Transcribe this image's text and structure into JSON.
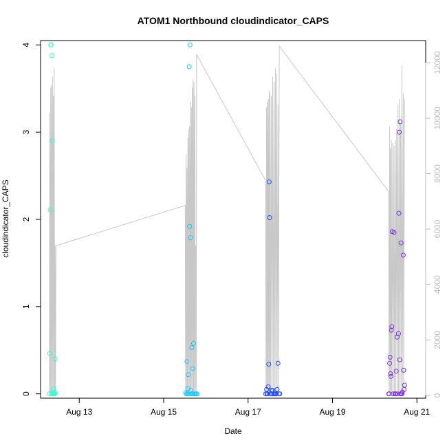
{
  "chart_data": {
    "type": "scatter",
    "title": "ATOM1 Northbound cloudindicator_CAPS",
    "xlabel": "Date",
    "ylabel": "cloudindicator_CAPS",
    "x_ticks": [
      "Aug 13",
      "Aug 15",
      "Aug 17",
      "Aug 19",
      "Aug 21"
    ],
    "y_ticks": [
      "0",
      "1",
      "2",
      "3",
      "4"
    ],
    "y2_ticks": [
      "0",
      "2000",
      "4000",
      "6000",
      "8000",
      "10000",
      "12000"
    ],
    "xlim": [
      "2021-08-12 02:00",
      "2021-08-21 05:00"
    ],
    "ylim": [
      -0.05,
      4.05
    ],
    "y2lim": [
      -100,
      12800
    ],
    "grid": false,
    "legend": "none",
    "point_colors": [
      "#2fffcc",
      "#19c8ff",
      "#1f4aff",
      "#7a2ee8"
    ],
    "line_color": "#c8c8c8",
    "series": [
      {
        "color": "#2fffcc",
        "values": [
          [
            "2021-08-12 07:45",
            4.0
          ],
          [
            "2021-08-12 08:00",
            4.0
          ],
          [
            "2021-08-12 08:30",
            3.88
          ],
          [
            "2021-08-12 08:45",
            2.9
          ],
          [
            "2021-08-12 07:30",
            2.11
          ],
          [
            "2021-08-12 07:15",
            0.46
          ],
          [
            "2021-08-12 10:15",
            0.4
          ],
          [
            "2021-08-12 09:30",
            0.06
          ],
          [
            "2021-08-12 09:00",
            0.02
          ],
          [
            "2021-08-12 07:00",
            0.0
          ],
          [
            "2021-08-12 08:15",
            0.0
          ],
          [
            "2021-08-12 09:15",
            0.0
          ],
          [
            "2021-08-12 09:45",
            0.0
          ],
          [
            "2021-08-12 10:00",
            0.0
          ],
          [
            "2021-08-12 10:30",
            0.01
          ]
        ]
      },
      {
        "color": "#19c8ff",
        "values": [
          [
            "2021-08-15 15:00",
            4.0
          ],
          [
            "2021-08-15 14:30",
            3.75
          ],
          [
            "2021-08-15 14:45",
            1.92
          ],
          [
            "2021-08-15 15:15",
            1.79
          ],
          [
            "2021-08-15 17:00",
            0.58
          ],
          [
            "2021-08-15 16:00",
            0.53
          ],
          [
            "2021-08-15 13:15",
            0.37
          ],
          [
            "2021-08-15 16:30",
            0.29
          ],
          [
            "2021-08-15 14:00",
            0.22
          ],
          [
            "2021-08-15 13:45",
            0.06
          ],
          [
            "2021-08-15 15:30",
            0.04
          ],
          [
            "2021-08-15 12:30",
            0.01
          ],
          [
            "2021-08-15 13:00",
            0.0
          ],
          [
            "2021-08-15 13:30",
            0.0
          ],
          [
            "2021-08-15 14:15",
            0.0
          ],
          [
            "2021-08-15 15:45",
            0.0
          ],
          [
            "2021-08-15 16:15",
            0.0
          ],
          [
            "2021-08-15 16:45",
            0.0
          ],
          [
            "2021-08-15 17:30",
            0.0
          ],
          [
            "2021-08-15 18:00",
            0.0
          ],
          [
            "2021-08-15 18:30",
            0.0
          ],
          [
            "2021-08-15 19:00",
            0.0
          ]
        ]
      },
      {
        "color": "#1f4aff",
        "values": [
          [
            "2021-08-17 12:00",
            2.43
          ],
          [
            "2021-08-17 12:15",
            2.02
          ],
          [
            "2021-08-17 17:00",
            0.35
          ],
          [
            "2021-08-17 11:45",
            0.34
          ],
          [
            "2021-08-17 11:30",
            0.08
          ],
          [
            "2021-08-17 10:30",
            0.05
          ],
          [
            "2021-08-17 16:30",
            0.05
          ],
          [
            "2021-08-17 13:15",
            0.04
          ],
          [
            "2021-08-17 14:00",
            0.04
          ],
          [
            "2021-08-17 10:00",
            0.0
          ],
          [
            "2021-08-17 10:45",
            0.0
          ],
          [
            "2021-08-17 11:00",
            0.0
          ],
          [
            "2021-08-17 12:45",
            0.0
          ],
          [
            "2021-08-17 13:30",
            0.0
          ],
          [
            "2021-08-17 14:30",
            0.0
          ],
          [
            "2021-08-17 15:00",
            0.0
          ],
          [
            "2021-08-17 15:30",
            0.0
          ],
          [
            "2021-08-17 16:00",
            0.0
          ],
          [
            "2021-08-17 17:30",
            0.0
          ],
          [
            "2021-08-17 18:00",
            0.0
          ]
        ]
      },
      {
        "color": "#7a2ee8",
        "values": [
          [
            "2021-08-20 14:30",
            3.12
          ],
          [
            "2021-08-20 14:00",
            3.0
          ],
          [
            "2021-08-20 13:45",
            2.07
          ],
          [
            "2021-08-20 10:00",
            1.86
          ],
          [
            "2021-08-20 11:00",
            1.85
          ],
          [
            "2021-08-20 15:00",
            1.73
          ],
          [
            "2021-08-20 16:15",
            1.59
          ],
          [
            "2021-08-20 09:45",
            0.77
          ],
          [
            "2021-08-20 09:30",
            0.73
          ],
          [
            "2021-08-20 13:30",
            0.69
          ],
          [
            "2021-08-20 12:45",
            0.65
          ],
          [
            "2021-08-20 08:45",
            0.42
          ],
          [
            "2021-08-20 14:15",
            0.39
          ],
          [
            "2021-08-20 08:30",
            0.35
          ],
          [
            "2021-08-20 16:30",
            0.27
          ],
          [
            "2021-08-20 12:15",
            0.26
          ],
          [
            "2021-08-20 09:00",
            0.23
          ],
          [
            "2021-08-20 09:15",
            0.2
          ],
          [
            "2021-08-20 17:00",
            0.1
          ],
          [
            "2021-08-20 16:45",
            0.05
          ],
          [
            "2021-08-20 15:45",
            0.02
          ],
          [
            "2021-08-20 08:15",
            0.0
          ],
          [
            "2021-08-20 08:00",
            0.0
          ],
          [
            "2021-08-20 10:30",
            0.0
          ],
          [
            "2021-08-20 11:30",
            0.0
          ],
          [
            "2021-08-20 12:00",
            0.0
          ],
          [
            "2021-08-20 13:00",
            0.0
          ],
          [
            "2021-08-20 14:45",
            0.0
          ],
          [
            "2021-08-20 15:15",
            0.0
          ],
          [
            "2021-08-20 15:30",
            0.0
          ]
        ]
      }
    ],
    "secondary_line": [
      [
        "2021-08-12 07:00",
        0
      ],
      [
        "2021-08-12 07:15",
        10200
      ],
      [
        "2021-08-12 07:30",
        0
      ],
      [
        "2021-08-12 07:45",
        11100
      ],
      [
        "2021-08-12 08:00",
        0
      ],
      [
        "2021-08-12 08:15",
        11200
      ],
      [
        "2021-08-12 08:30",
        0
      ],
      [
        "2021-08-12 08:45",
        11500
      ],
      [
        "2021-08-12 09:00",
        0
      ],
      [
        "2021-08-12 09:15",
        10800
      ],
      [
        "2021-08-12 09:30",
        0
      ],
      [
        "2021-08-12 09:45",
        11800
      ],
      [
        "2021-08-12 10:00",
        0
      ],
      [
        "2021-08-12 10:15",
        5400
      ],
      [
        "2021-08-12 10:30",
        0
      ],
      [
        "2021-08-12 10:45",
        5400
      ],
      [
        "2021-08-15 12:15",
        6850
      ],
      [
        "2021-08-15 12:30",
        0
      ],
      [
        "2021-08-15 12:45",
        8700
      ],
      [
        "2021-08-15 13:00",
        0
      ],
      [
        "2021-08-15 13:15",
        8200
      ],
      [
        "2021-08-15 13:30",
        0
      ],
      [
        "2021-08-15 13:45",
        9300
      ],
      [
        "2021-08-15 14:00",
        0
      ],
      [
        "2021-08-15 14:15",
        9600
      ],
      [
        "2021-08-15 14:30",
        0
      ],
      [
        "2021-08-15 14:45",
        9700
      ],
      [
        "2021-08-15 15:00",
        0
      ],
      [
        "2021-08-15 15:15",
        10600
      ],
      [
        "2021-08-15 15:30",
        0
      ],
      [
        "2021-08-15 15:45",
        10400
      ],
      [
        "2021-08-15 16:00",
        0
      ],
      [
        "2021-08-15 16:15",
        11100
      ],
      [
        "2021-08-15 16:30",
        0
      ],
      [
        "2021-08-15 16:45",
        11400
      ],
      [
        "2021-08-15 17:00",
        0
      ],
      [
        "2021-08-15 17:15",
        11300
      ],
      [
        "2021-08-15 17:30",
        0
      ],
      [
        "2021-08-15 17:45",
        10800
      ],
      [
        "2021-08-15 18:00",
        0
      ],
      [
        "2021-08-15 18:15",
        5400
      ],
      [
        "2021-08-15 18:30",
        0
      ],
      [
        "2021-08-15 18:45",
        12300
      ],
      [
        "2021-08-17 10:00",
        7750
      ],
      [
        "2021-08-17 10:15",
        0
      ],
      [
        "2021-08-17 10:30",
        10400
      ],
      [
        "2021-08-17 10:45",
        0
      ],
      [
        "2021-08-17 11:00",
        10600
      ],
      [
        "2021-08-17 11:15",
        0
      ],
      [
        "2021-08-17 11:30",
        10700
      ],
      [
        "2021-08-17 11:45",
        0
      ],
      [
        "2021-08-17 12:00",
        11000
      ],
      [
        "2021-08-17 12:15",
        0
      ],
      [
        "2021-08-17 12:30",
        10900
      ],
      [
        "2021-08-17 12:45",
        0
      ],
      [
        "2021-08-17 13:15",
        10800
      ],
      [
        "2021-08-17 13:30",
        0
      ],
      [
        "2021-08-17 14:00",
        11500
      ],
      [
        "2021-08-17 14:15",
        0
      ],
      [
        "2021-08-17 14:45",
        11300
      ],
      [
        "2021-08-17 15:00",
        0
      ],
      [
        "2021-08-17 15:30",
        11800
      ],
      [
        "2021-08-17 15:45",
        0
      ],
      [
        "2021-08-17 16:15",
        11600
      ],
      [
        "2021-08-17 16:30",
        0
      ],
      [
        "2021-08-17 17:00",
        10500
      ],
      [
        "2021-08-17 17:15",
        0
      ],
      [
        "2021-08-17 17:45",
        12600
      ],
      [
        "2021-08-20 08:00",
        7350
      ],
      [
        "2021-08-20 08:15",
        0
      ],
      [
        "2021-08-20 08:30",
        9700
      ],
      [
        "2021-08-20 08:45",
        0
      ],
      [
        "2021-08-20 09:00",
        8900
      ],
      [
        "2021-08-20 09:15",
        0
      ],
      [
        "2021-08-20 09:30",
        9200
      ],
      [
        "2021-08-20 09:45",
        0
      ],
      [
        "2021-08-20 10:15",
        9100
      ],
      [
        "2021-08-20 10:30",
        0
      ],
      [
        "2021-08-20 11:00",
        9000
      ],
      [
        "2021-08-20 11:15",
        0
      ],
      [
        "2021-08-20 11:45",
        9200
      ],
      [
        "2021-08-20 12:00",
        0
      ],
      [
        "2021-08-20 12:30",
        9600
      ],
      [
        "2021-08-20 12:45",
        0
      ],
      [
        "2021-08-20 13:15",
        10500
      ],
      [
        "2021-08-20 13:30",
        0
      ],
      [
        "2021-08-20 14:00",
        10700
      ],
      [
        "2021-08-20 14:15",
        0
      ],
      [
        "2021-08-20 14:45",
        9800
      ],
      [
        "2021-08-20 15:00",
        0
      ],
      [
        "2021-08-20 15:30",
        11900
      ],
      [
        "2021-08-20 15:45",
        0
      ],
      [
        "2021-08-20 16:15",
        10900
      ],
      [
        "2021-08-20 16:30",
        0
      ],
      [
        "2021-08-20 17:00",
        10700
      ]
    ]
  }
}
